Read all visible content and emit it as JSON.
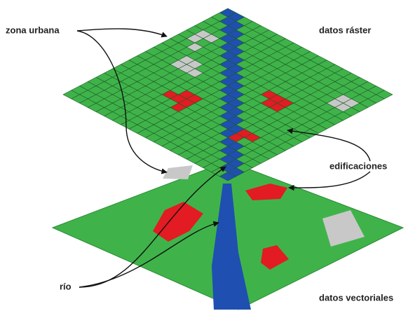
{
  "labels": {
    "urban": "zona urbana",
    "raster": "datos ráster",
    "buildings": "edificaciones",
    "river": "río",
    "vector": "datos vectoriales"
  }
}
